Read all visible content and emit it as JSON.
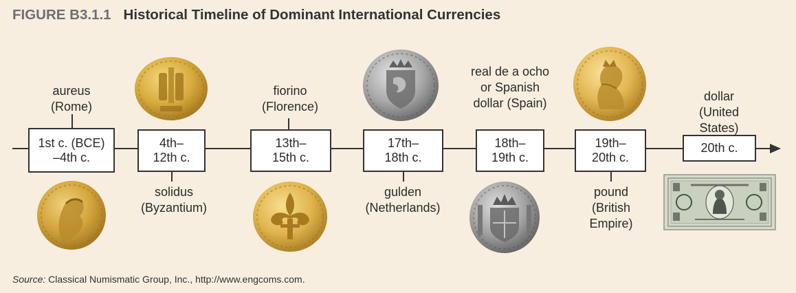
{
  "figure": {
    "label": "FIGURE B3.1.1",
    "title": "Historical Timeline of Dominant International Currencies"
  },
  "periods": [
    {
      "label": "1st c. (BCE)\n–4th c."
    },
    {
      "label": "4th–\n12th c."
    },
    {
      "label": "13th–\n15th c."
    },
    {
      "label": "17th–\n18th c."
    },
    {
      "label": "18th–\n19th c."
    },
    {
      "label": "19th–\n20th c."
    },
    {
      "label": "20th c."
    }
  ],
  "currencies": [
    {
      "label": "aureus\n(Rome)",
      "image": "gold-coin-roman-emperor-profile"
    },
    {
      "label": "solidus\n(Byzantium)",
      "image": "gold-coin-byzantine-figures"
    },
    {
      "label": "fiorino\n(Florence)",
      "image": "gold-coin-fleur-de-lis"
    },
    {
      "label": "gulden\n(Netherlands)",
      "image": "silver-coin-lion-shield"
    },
    {
      "label": "real de a ocho\nor Spanish\ndollar (Spain)",
      "image": "silver-coin-crowned-shield"
    },
    {
      "label": "pound\n(British\nEmpire)",
      "image": "gold-coin-queen-profile"
    },
    {
      "label": "dollar\n(United States)",
      "image": "one-dollar-banknote"
    }
  ],
  "source": {
    "prefix": "Source:",
    "text": "Classical Numismatic Group, Inc., http://www.engcoms.com."
  },
  "colors": {
    "background": "#f7eedf",
    "gold": "#c9a233",
    "silver": "#a3a3a3",
    "banknote": "#c8cfbf"
  }
}
